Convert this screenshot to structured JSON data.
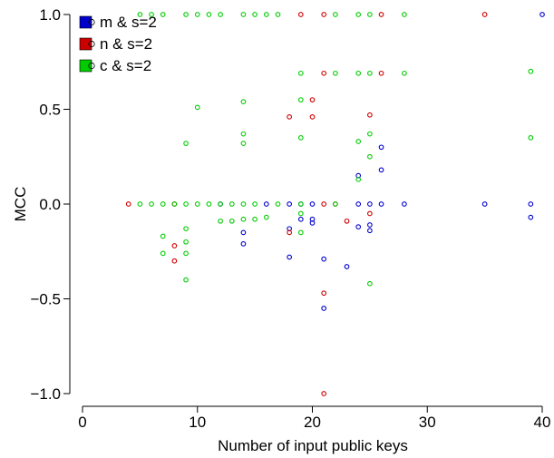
{
  "chart_data": {
    "type": "scatter",
    "title": "",
    "xlabel": "Number of input public keys",
    "ylabel": "MCC",
    "xlim": [
      0,
      40
    ],
    "ylim": [
      -1.0,
      1.0
    ],
    "xticks": [
      0,
      10,
      20,
      30,
      40
    ],
    "xtick_labels": [
      "0",
      "10",
      "20",
      "30",
      "40"
    ],
    "yticks": [
      -1.0,
      -0.5,
      0.0,
      0.5,
      1.0
    ],
    "ytick_labels": [
      "−1.0",
      "−0.5",
      "0.0",
      "0.5",
      "1.0"
    ],
    "grid": false,
    "legend_position": "top-left",
    "series": [
      {
        "name": "m & s=2",
        "color": "#0000cc",
        "points": [
          [
            12,
            0.0
          ],
          [
            16,
            0.0
          ],
          [
            18,
            0.0
          ],
          [
            19,
            0.0
          ],
          [
            20,
            0.0
          ],
          [
            24,
            0.0
          ],
          [
            25,
            0.0
          ],
          [
            26,
            0.0
          ],
          [
            28,
            0.0
          ],
          [
            35,
            0.0
          ],
          [
            39,
            0.0
          ],
          [
            40,
            1.0
          ],
          [
            14,
            -0.15
          ],
          [
            14,
            -0.21
          ],
          [
            18,
            -0.13
          ],
          [
            18,
            -0.28
          ],
          [
            19,
            -0.08
          ],
          [
            20,
            -0.08
          ],
          [
            20,
            -0.1
          ],
          [
            21,
            -0.29
          ],
          [
            21,
            -0.55
          ],
          [
            23,
            -0.33
          ],
          [
            24,
            -0.12
          ],
          [
            25,
            -0.11
          ],
          [
            25,
            -0.14
          ],
          [
            24,
            0.15
          ],
          [
            26,
            0.18
          ],
          [
            26,
            0.3
          ],
          [
            39,
            -0.07
          ]
        ]
      },
      {
        "name": "n & s=2",
        "color": "#cc0000",
        "points": [
          [
            4,
            0.0
          ],
          [
            8,
            0.0
          ],
          [
            21,
            0.0
          ],
          [
            22,
            0.0
          ],
          [
            8,
            -0.22
          ],
          [
            8,
            -0.3
          ],
          [
            18,
            -0.15
          ],
          [
            20,
            0.46
          ],
          [
            20,
            0.55
          ],
          [
            18,
            0.46
          ],
          [
            21,
            -0.47
          ],
          [
            21,
            -1.0
          ],
          [
            23,
            -0.09
          ],
          [
            25,
            -0.05
          ],
          [
            19,
            1.0
          ],
          [
            21,
            1.0
          ],
          [
            26,
            1.0
          ],
          [
            35,
            1.0
          ],
          [
            21,
            0.69
          ],
          [
            26,
            0.69
          ],
          [
            25,
            0.47
          ]
        ]
      },
      {
        "name": "c & s=2",
        "color": "#00cc00",
        "points": [
          [
            5,
            0.0
          ],
          [
            6,
            0.0
          ],
          [
            7,
            0.0
          ],
          [
            8,
            0.0
          ],
          [
            9,
            0.0
          ],
          [
            10,
            0.0
          ],
          [
            11,
            0.0
          ],
          [
            12,
            0.0
          ],
          [
            13,
            0.0
          ],
          [
            14,
            0.0
          ],
          [
            15,
            0.0
          ],
          [
            17,
            0.0
          ],
          [
            19,
            0.0
          ],
          [
            22,
            0.0
          ],
          [
            5,
            1.0
          ],
          [
            6,
            1.0
          ],
          [
            7,
            1.0
          ],
          [
            9,
            1.0
          ],
          [
            10,
            1.0
          ],
          [
            11,
            1.0
          ],
          [
            12,
            1.0
          ],
          [
            14,
            1.0
          ],
          [
            15,
            1.0
          ],
          [
            16,
            1.0
          ],
          [
            17,
            1.0
          ],
          [
            22,
            1.0
          ],
          [
            24,
            1.0
          ],
          [
            25,
            1.0
          ],
          [
            28,
            1.0
          ],
          [
            10,
            0.51
          ],
          [
            9,
            0.32
          ],
          [
            14,
            0.54
          ],
          [
            14,
            0.37
          ],
          [
            14,
            0.32
          ],
          [
            19,
            0.69
          ],
          [
            19,
            0.55
          ],
          [
            19,
            0.35
          ],
          [
            22,
            0.69
          ],
          [
            24,
            0.69
          ],
          [
            25,
            0.69
          ],
          [
            28,
            0.69
          ],
          [
            39,
            0.7
          ],
          [
            39,
            0.35
          ],
          [
            24,
            0.33
          ],
          [
            25,
            0.37
          ],
          [
            25,
            0.25
          ],
          [
            24,
            0.13
          ],
          [
            7,
            -0.17
          ],
          [
            7,
            -0.26
          ],
          [
            9,
            -0.13
          ],
          [
            9,
            -0.2
          ],
          [
            9,
            -0.26
          ],
          [
            9,
            -0.4
          ],
          [
            12,
            -0.09
          ],
          [
            13,
            -0.09
          ],
          [
            14,
            -0.08
          ],
          [
            15,
            -0.08
          ],
          [
            16,
            -0.07
          ],
          [
            19,
            -0.05
          ],
          [
            19,
            -0.15
          ],
          [
            25,
            -0.42
          ]
        ]
      }
    ]
  }
}
